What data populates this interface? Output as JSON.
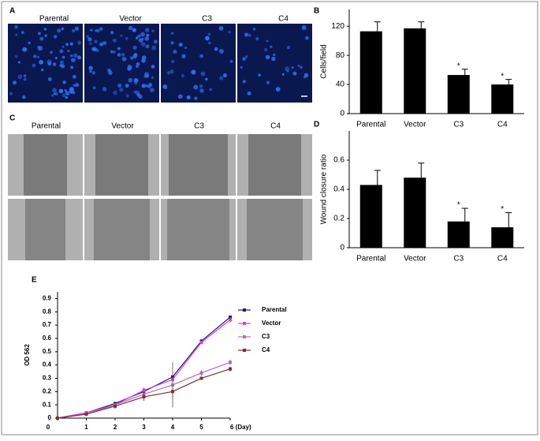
{
  "panel_labels": [
    "A",
    "B",
    "C",
    "D",
    "E"
  ],
  "image_panels": [
    {
      "labels": [
        "Parental",
        "Vector",
        "C3",
        "C4"
      ]
    },
    {
      "labels": [
        "Parental",
        "Vector",
        "C3",
        "C4"
      ]
    }
  ],
  "chart_data": [
    {
      "type": "bar",
      "ylabel": "Cells/field",
      "categories": [
        "Parental",
        "Vector",
        "C3",
        "C4"
      ],
      "values": [
        113,
        117,
        53,
        40
      ],
      "errors": [
        13,
        9,
        8,
        7
      ],
      "color": "#000000",
      "ylim": [
        0,
        143
      ],
      "yticks": [
        0,
        40,
        80,
        120
      ],
      "annotations": [
        {
          "text": "*",
          "x": "C3"
        },
        {
          "text": "*",
          "x": "C4"
        }
      ]
    },
    {
      "type": "bar",
      "ylabel": "Wound closure ratio",
      "categories": [
        "Parental",
        "Vector",
        "C3",
        "C4"
      ],
      "values": [
        0.43,
        0.48,
        0.18,
        0.14
      ],
      "errors": [
        0.1,
        0.1,
        0.09,
        0.1
      ],
      "color": "#000000",
      "ylim": [
        0,
        0.8
      ],
      "yticks": [
        0,
        0.2,
        0.4,
        0.6
      ],
      "annotations": [
        {
          "text": "*",
          "x": "C3"
        },
        {
          "text": "*",
          "x": "C4"
        }
      ]
    },
    {
      "type": "line",
      "ylabel": "OD 562",
      "x": [
        0,
        1,
        2,
        3,
        4,
        5,
        6
      ],
      "xlim": [
        0,
        6
      ],
      "xticks": [
        0,
        1,
        2,
        3,
        4,
        5,
        {
          "value": 6,
          "label": "6 (Day)"
        }
      ],
      "ylim": [
        0,
        0.95
      ],
      "yticks": [
        0,
        0.1,
        0.2,
        0.3,
        0.4,
        0.5,
        0.6,
        0.7,
        0.8,
        0.9
      ],
      "legend": "right",
      "series": [
        {
          "name": "Parental",
          "color": "#1c1c70",
          "values": [
            0,
            0.04,
            0.11,
            0.2,
            0.31,
            0.58,
            0.76
          ],
          "errors": [
            0,
            0.01,
            0.01,
            0.02,
            0.02,
            0.01,
            0.01
          ]
        },
        {
          "name": "Vector",
          "color": "#e03ce0",
          "values": [
            0,
            0.04,
            0.1,
            0.21,
            0.29,
            0.57,
            0.74
          ],
          "errors": [
            0,
            0.01,
            0.01,
            0.02,
            0.02,
            0.01,
            0.02
          ]
        },
        {
          "name": "C3",
          "color": "#b070c0",
          "values": [
            0,
            0.03,
            0.1,
            0.18,
            0.25,
            0.34,
            0.42
          ],
          "errors": [
            0,
            0.01,
            0.01,
            0.02,
            0.17,
            0.02,
            0.02
          ]
        },
        {
          "name": "C4",
          "color": "#8b2a2a",
          "values": [
            0,
            0.03,
            0.09,
            0.16,
            0.2,
            0.3,
            0.37
          ],
          "errors": [
            0,
            0.01,
            0.02,
            0.03,
            0.06,
            0.01,
            0.02
          ]
        }
      ]
    }
  ]
}
